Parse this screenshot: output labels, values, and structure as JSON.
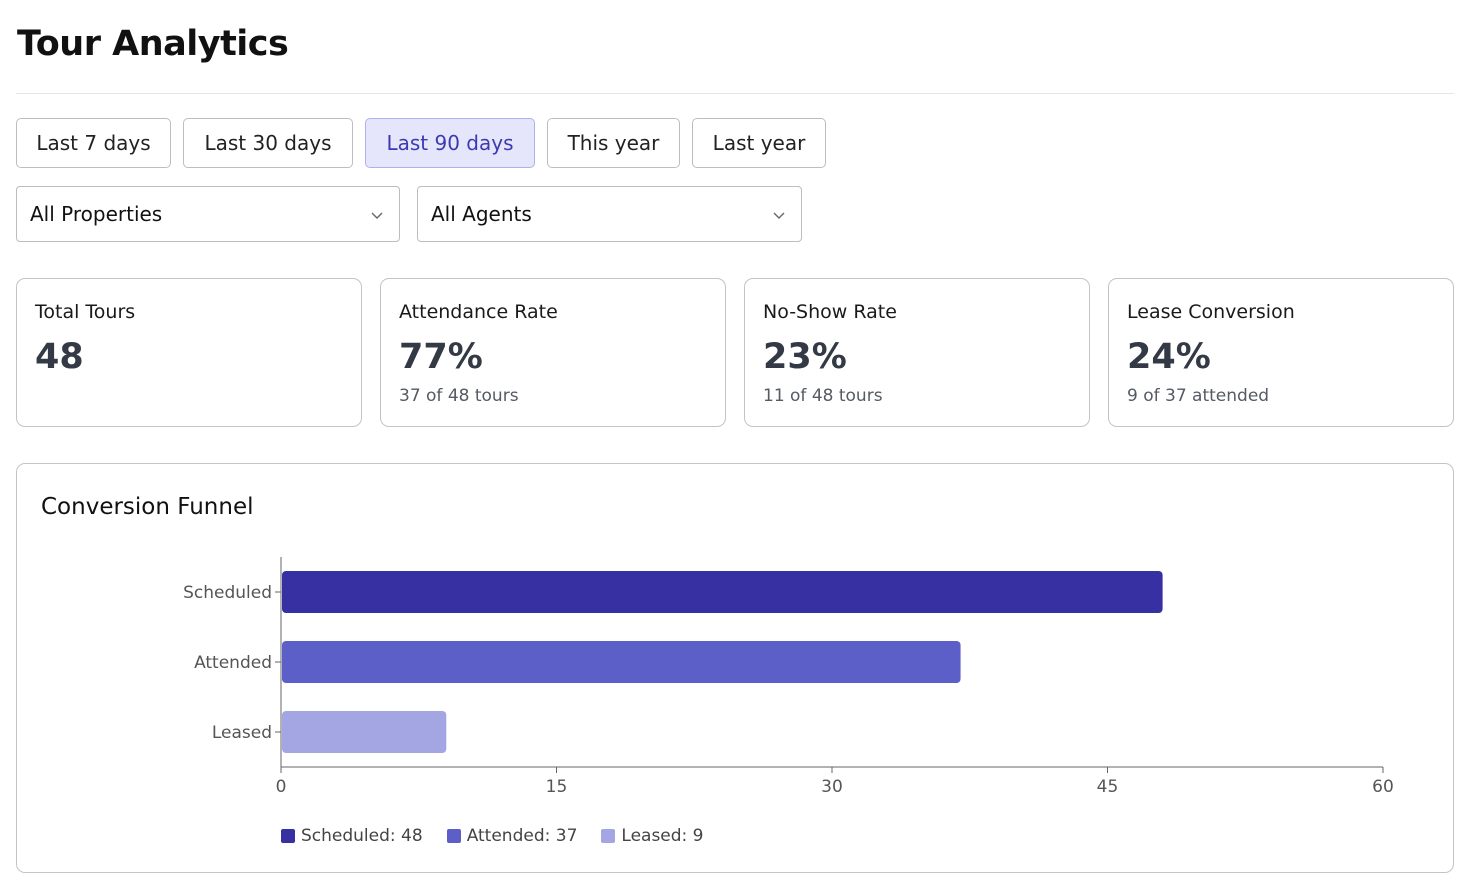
{
  "page": {
    "title": "Tour Analytics"
  },
  "date_ranges": [
    {
      "label": "Last 7 days",
      "active": false
    },
    {
      "label": "Last 30 days",
      "active": false
    },
    {
      "label": "Last 90 days",
      "active": true
    },
    {
      "label": "This year",
      "active": false
    },
    {
      "label": "Last year",
      "active": false
    }
  ],
  "filters": {
    "property": {
      "value": "All Properties"
    },
    "agent": {
      "value": "All Agents"
    }
  },
  "stats": [
    {
      "label": "Total Tours",
      "value": "48",
      "sub": ""
    },
    {
      "label": "Attendance Rate",
      "value": "77%",
      "sub": "37 of 48 tours"
    },
    {
      "label": "No-Show Rate",
      "value": "23%",
      "sub": "11 of 48 tours"
    },
    {
      "label": "Lease Conversion",
      "value": "24%",
      "sub": "9 of 37 attended"
    }
  ],
  "funnel": {
    "title": "Conversion Funnel"
  },
  "colors": {
    "scheduled": "#3730a3",
    "attended": "#5b5fc7",
    "leased": "#a3a6e2",
    "accent": "#3b3ab0"
  },
  "chart_data": {
    "type": "bar",
    "orientation": "horizontal",
    "categories": [
      "Scheduled",
      "Attended",
      "Leased"
    ],
    "values": [
      48,
      37,
      9
    ],
    "xlim": [
      0,
      60
    ],
    "xticks": [
      0,
      15,
      30,
      45,
      60
    ],
    "title": "",
    "xlabel": "",
    "ylabel": "",
    "grid": false,
    "legend": [
      "Scheduled: 48",
      "Attended: 37",
      "Leased: 9"
    ],
    "legend_position": "bottom-left"
  }
}
